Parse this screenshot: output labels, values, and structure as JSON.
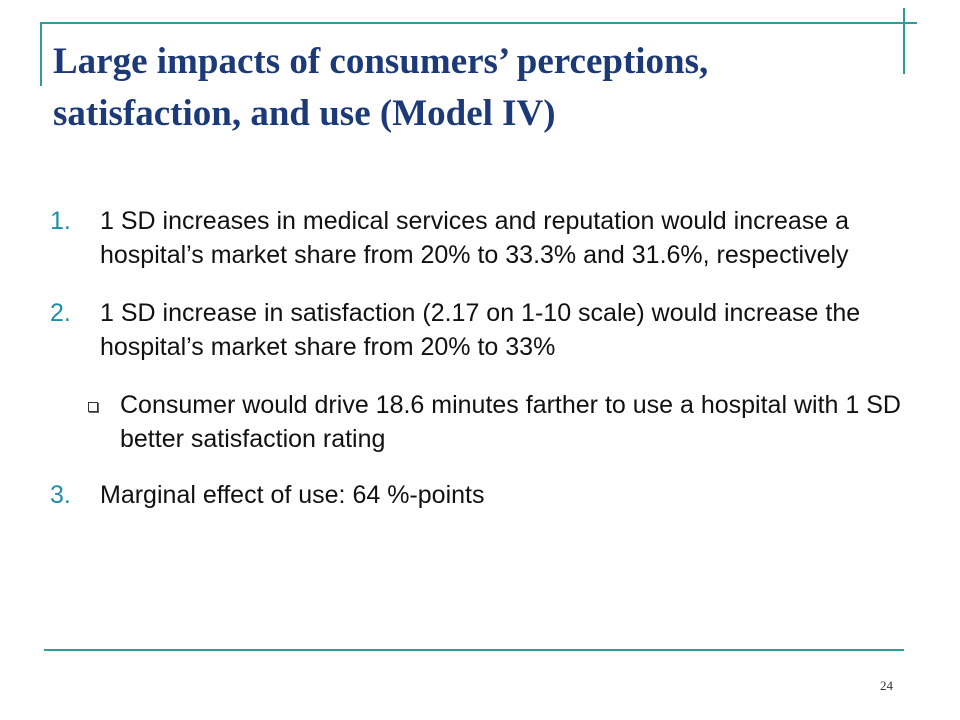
{
  "slide": {
    "title": "Large impacts of consumers’ perceptions, satisfaction, and use (Model IV)",
    "items": [
      {
        "number": "1.",
        "text": "1 SD increases in medical services and reputation would increase a hospital’s market share from 20% to 33.3% and 31.6%, respectively"
      },
      {
        "number": "2.",
        "text": "1 SD increase in satisfaction (2.17 on 1-10 scale)  would increase the hospital’s market share from 20% to 33%",
        "subitems": [
          {
            "text": "Consumer would drive 18.6 minutes farther to use a hospital with 1 SD better satisfaction rating"
          }
        ]
      },
      {
        "number": "3.",
        "text": "Marginal effect of use: 64 %-points"
      }
    ],
    "page_number": "24"
  },
  "colors": {
    "title": "#1d3a78",
    "accent_rule": "#2d9d9a",
    "number": "#1f8fa6",
    "body_text": "#111111"
  }
}
